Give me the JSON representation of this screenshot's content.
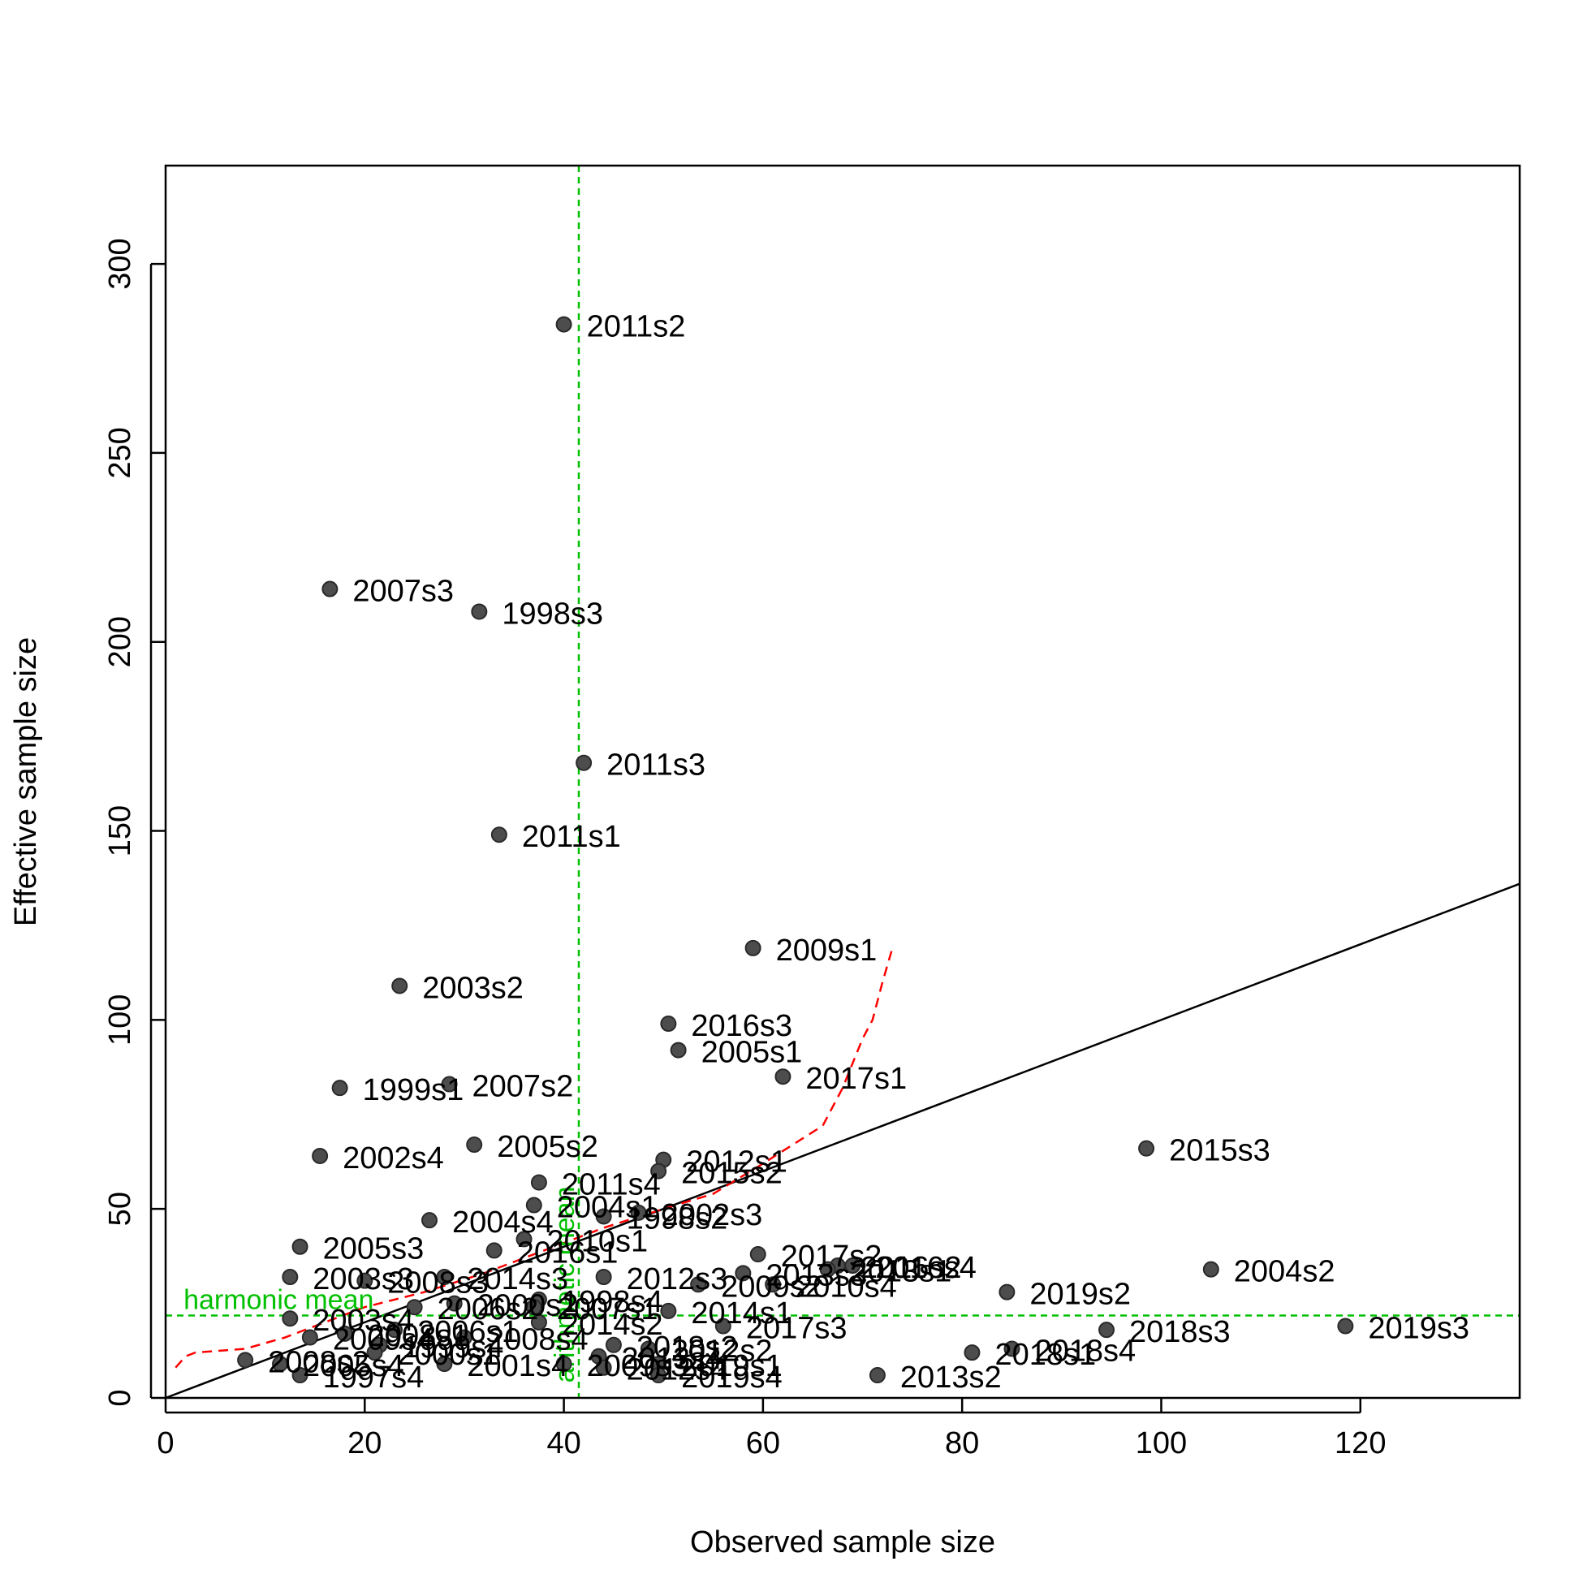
{
  "chart_data": {
    "type": "scatter",
    "xlabel": "Observed sample size",
    "ylabel": "Effective sample size",
    "xlim": [
      0,
      136
    ],
    "ylim": [
      0,
      326
    ],
    "x_ticks": [
      0,
      20,
      40,
      60,
      80,
      100,
      120
    ],
    "y_ticks": [
      0,
      50,
      100,
      150,
      200,
      250,
      300
    ],
    "grid": false,
    "point_color": "#4d4d4d",
    "identity_line": {
      "from": [
        0,
        0
      ],
      "to": [
        136,
        136
      ],
      "color": "#000000"
    },
    "reference_lines": [
      {
        "orientation": "vertical",
        "value": 41.5,
        "label": "arithmetic mean",
        "color": "#00c000"
      },
      {
        "orientation": "horizontal",
        "value": 21.8,
        "label": "harmonic mean",
        "color": "#00c000"
      }
    ],
    "smoother": {
      "color": "#ff0000",
      "style": "dashed",
      "points": [
        [
          1,
          8
        ],
        [
          2,
          11
        ],
        [
          3,
          12
        ],
        [
          8,
          13
        ],
        [
          12,
          16
        ],
        [
          16,
          20
        ],
        [
          20,
          24
        ],
        [
          26,
          28
        ],
        [
          32,
          33
        ],
        [
          38,
          39
        ],
        [
          44,
          45
        ],
        [
          50,
          50
        ],
        [
          55,
          54
        ],
        [
          60,
          62
        ],
        [
          63,
          67
        ],
        [
          66,
          72
        ],
        [
          68,
          82
        ],
        [
          70,
          95
        ],
        [
          71,
          100
        ],
        [
          72,
          110
        ],
        [
          73,
          119
        ]
      ]
    },
    "points": [
      {
        "label": "2011s2",
        "x": 40.0,
        "y": 284
      },
      {
        "label": "2007s3",
        "x": 16.5,
        "y": 214
      },
      {
        "label": "1998s3",
        "x": 31.5,
        "y": 208
      },
      {
        "label": "2011s3",
        "x": 42.0,
        "y": 168
      },
      {
        "label": "2011s1",
        "x": 33.5,
        "y": 149
      },
      {
        "label": "2009s1",
        "x": 59.0,
        "y": 119
      },
      {
        "label": "2003s2",
        "x": 23.5,
        "y": 109
      },
      {
        "label": "2016s3",
        "x": 50.5,
        "y": 99
      },
      {
        "label": "2005s1",
        "x": 51.5,
        "y": 92
      },
      {
        "label": "2017s1",
        "x": 62.0,
        "y": 85
      },
      {
        "label": "1999s1",
        "x": 17.5,
        "y": 82
      },
      {
        "label": "2007s2",
        "x": 28.5,
        "y": 83
      },
      {
        "label": "2015s3",
        "x": 98.5,
        "y": 66
      },
      {
        "label": "2005s2",
        "x": 31.0,
        "y": 67
      },
      {
        "label": "2002s4",
        "x": 15.5,
        "y": 64
      },
      {
        "label": "2012s1",
        "x": 50.0,
        "y": 63
      },
      {
        "label": "2015s2",
        "x": 49.5,
        "y": 60
      },
      {
        "label": "2011s4",
        "x": 37.5,
        "y": 57
      },
      {
        "label": "2004s1",
        "x": 37.0,
        "y": 51
      },
      {
        "label": "2002s3",
        "x": 47.5,
        "y": 49
      },
      {
        "label": "1998s2",
        "x": 44.0,
        "y": 48
      },
      {
        "label": "2004s4",
        "x": 26.5,
        "y": 47
      },
      {
        "label": "2010s1",
        "x": 36.0,
        "y": 42
      },
      {
        "label": "2005s3",
        "x": 13.5,
        "y": 40
      },
      {
        "label": "2016s1",
        "x": 33.0,
        "y": 39
      },
      {
        "label": "2017s2",
        "x": 59.5,
        "y": 38
      },
      {
        "label": "2004s2",
        "x": 105.0,
        "y": 34
      },
      {
        "label": "2016s2",
        "x": 67.5,
        "y": 35
      },
      {
        "label": "2013s1",
        "x": 66.5,
        "y": 34
      },
      {
        "label": "2016s4",
        "x": 69.0,
        "y": 35
      },
      {
        "label": "2013s3",
        "x": 58.0,
        "y": 33
      },
      {
        "label": "2009s2",
        "x": 53.5,
        "y": 30
      },
      {
        "label": "2010s4",
        "x": 61.0,
        "y": 30
      },
      {
        "label": "2012s3",
        "x": 44.0,
        "y": 32
      },
      {
        "label": "2014s3",
        "x": 28.0,
        "y": 32
      },
      {
        "label": "2003s3",
        "x": 12.5,
        "y": 32
      },
      {
        "label": "2008s3",
        "x": 20.0,
        "y": 31
      },
      {
        "label": "2019s2",
        "x": 84.5,
        "y": 28
      },
      {
        "label": "1998s4",
        "x": 37.5,
        "y": 26
      },
      {
        "label": "2007s1",
        "x": 37.0,
        "y": 24
      },
      {
        "label": "2014s1",
        "x": 50.5,
        "y": 23
      },
      {
        "label": "2000s2",
        "x": 29.0,
        "y": 25
      },
      {
        "label": "2006s2",
        "x": 25.0,
        "y": 24
      },
      {
        "label": "2003s4",
        "x": 12.5,
        "y": 21
      },
      {
        "label": "2014s2",
        "x": 37.5,
        "y": 20
      },
      {
        "label": "2017s3",
        "x": 56.0,
        "y": 19
      },
      {
        "label": "2019s3",
        "x": 118.5,
        "y": 19
      },
      {
        "label": "2018s3",
        "x": 94.5,
        "y": 18
      },
      {
        "label": "2008s1",
        "x": 18.0,
        "y": 17
      },
      {
        "label": "2006s1",
        "x": 23.0,
        "y": 18
      },
      {
        "label": "2008s4",
        "x": 30.0,
        "y": 16
      },
      {
        "label": "2009s4",
        "x": 14.5,
        "y": 16
      },
      {
        "label": "2018s2",
        "x": 45.0,
        "y": 14
      },
      {
        "label": "2012s2",
        "x": 48.5,
        "y": 13
      },
      {
        "label": "2018s4",
        "x": 85.0,
        "y": 13
      },
      {
        "label": "2018s1",
        "x": 81.0,
        "y": 12
      },
      {
        "label": "1999s4",
        "x": 21.5,
        "y": 14
      },
      {
        "label": "2000s1",
        "x": 21.0,
        "y": 12
      },
      {
        "label": "2008s2",
        "x": 8.0,
        "y": 10
      },
      {
        "label": "2005s4",
        "x": 11.5,
        "y": 9
      },
      {
        "label": "2001s4",
        "x": 28.0,
        "y": 9
      },
      {
        "label": "2013s4",
        "x": 43.5,
        "y": 11
      },
      {
        "label": "2009s3",
        "x": 40.0,
        "y": 9
      },
      {
        "label": "2019s1",
        "x": 49.5,
        "y": 9
      },
      {
        "label": "2012s4",
        "x": 44.0,
        "y": 8
      },
      {
        "label": "2019s4",
        "x": 49.5,
        "y": 6
      },
      {
        "label": "1997s4",
        "x": 13.5,
        "y": 6
      },
      {
        "label": "2013s2",
        "x": 71.5,
        "y": 6
      }
    ]
  }
}
